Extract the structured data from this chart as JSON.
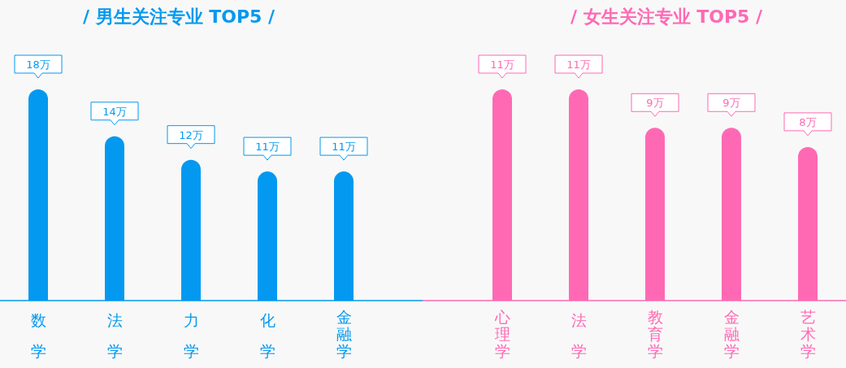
{
  "chart_data": [
    {
      "type": "bar",
      "title": "/ 男生关注专业 TOP5 /",
      "categories": [
        "数学",
        "法学",
        "力学",
        "化学",
        "金融学"
      ],
      "values": [
        18,
        14,
        12,
        11,
        11
      ],
      "value_labels": [
        "18万",
        "14万",
        "12万",
        "11万",
        "11万"
      ],
      "color": "#0399f0"
    },
    {
      "type": "bar",
      "title": "/ 女生关注专业 TOP5 /",
      "categories": [
        "心理学",
        "法学",
        "教育学",
        "金融学",
        "艺术学"
      ],
      "values": [
        11,
        11,
        9,
        9,
        8
      ],
      "value_labels": [
        "11万",
        "11万",
        "9万",
        "9万",
        "8万"
      ],
      "color": "#ff69b4"
    }
  ]
}
